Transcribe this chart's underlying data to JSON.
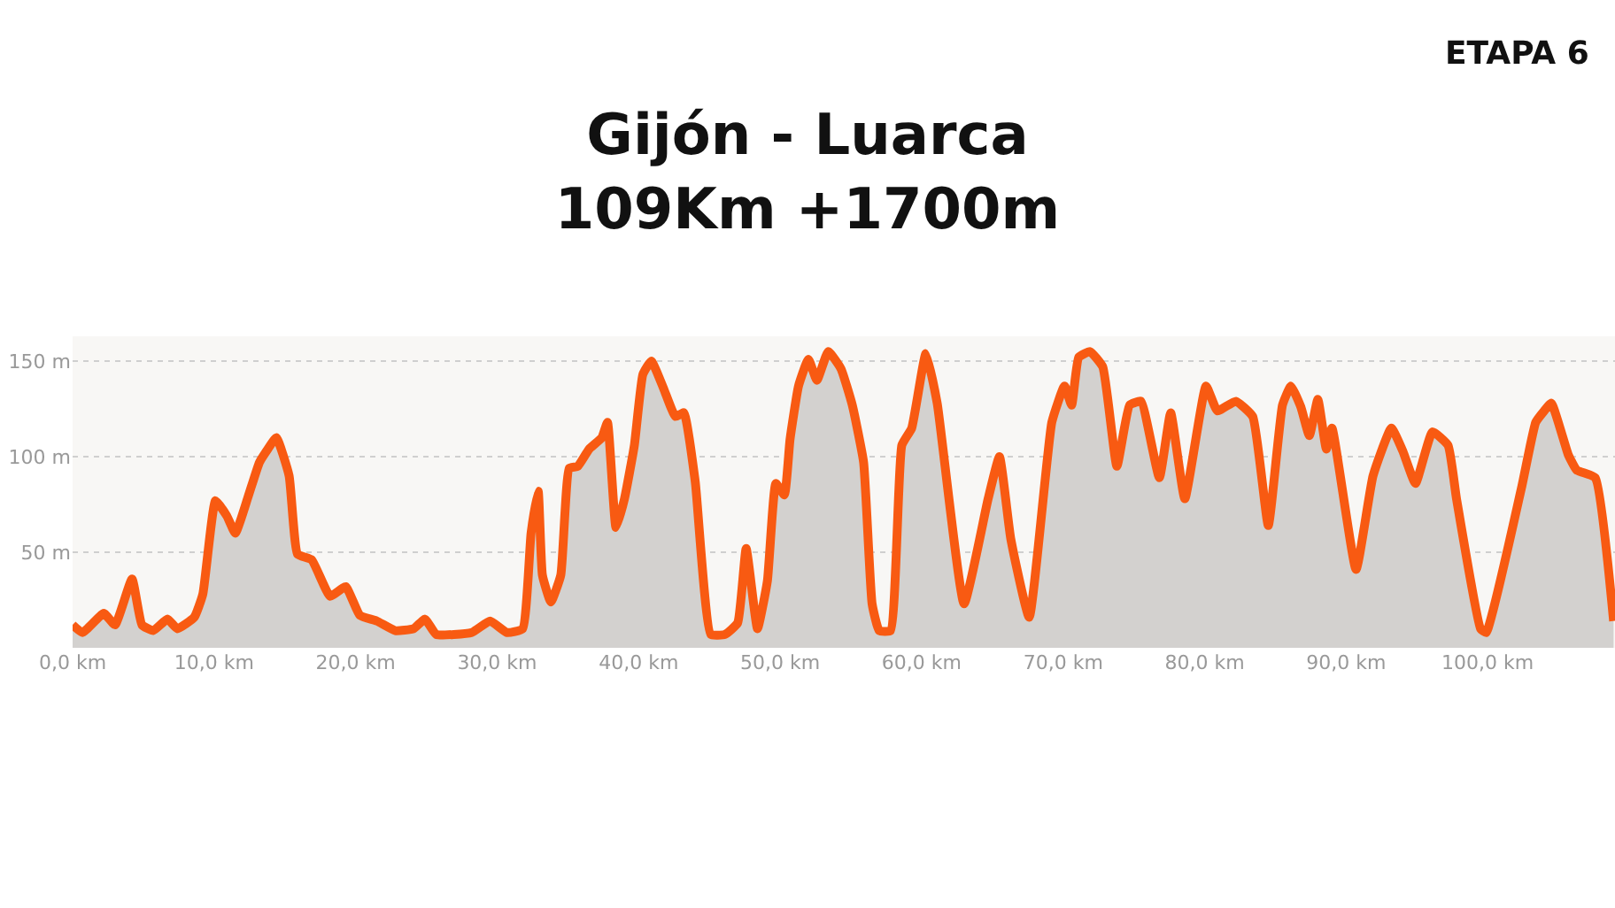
{
  "chart_data": {
    "type": "area",
    "title": "Gijón - Luarca",
    "subtitle": "109Km +1700m",
    "annotations": [
      "ETAPA 6"
    ],
    "x": [
      0,
      0.7,
      2.2,
      3.0,
      4.2,
      4.9,
      5.7,
      6.7,
      7.4,
      8.6,
      9.2,
      10.1,
      10.9,
      11.5,
      12.4,
      13.2,
      13.8,
      14.4,
      15.3,
      15.9,
      16.9,
      18.2,
      19.3,
      20.3,
      21.5,
      22.8,
      24.1,
      24.9,
      25.7,
      28.2,
      29.5,
      30.7,
      31.8,
      32.4,
      32.9,
      33.2,
      33.8,
      34.5,
      35.1,
      35.7,
      36.5,
      37.4,
      37.8,
      38.4,
      39.0,
      39.7,
      40.3,
      40.9,
      41.8,
      42.6,
      43.2,
      44.0,
      45.1,
      46.1,
      47.0,
      47.6,
      48.4,
      49.1,
      49.7,
      50.3,
      50.7,
      51.3,
      52.0,
      52.6,
      53.4,
      54.3,
      55.1,
      55.9,
      56.5,
      57.0,
      57.8,
      58.6,
      59.3,
      60.3,
      61.1,
      63.0,
      64.7,
      65.5,
      66.3,
      67.6,
      69.2,
      70.1,
      70.6,
      71.1,
      71.9,
      72.8,
      73.8,
      74.7,
      75.5,
      76.8,
      77.6,
      78.6,
      80.1,
      80.9,
      82.2,
      83.4,
      84.5,
      85.5,
      86.1,
      86.8,
      87.4,
      88.0,
      88.6,
      89.0,
      90.7,
      91.9,
      93.2,
      94.0,
      94.9,
      96.1,
      97.2,
      97.8,
      99.5,
      99.9,
      102.4,
      103.4,
      104.0,
      104.5,
      105.7,
      106.3,
      107.6,
      108.9
    ],
    "series": [
      {
        "color": "#f85a12",
        "values": [
          12,
          8,
          18,
          12,
          36,
          12,
          9,
          15,
          10,
          16,
          28,
          77,
          69,
          60,
          79,
          97,
          104,
          110,
          90,
          49,
          46,
          27,
          32,
          17,
          14,
          9,
          10,
          15,
          7,
          8,
          14,
          8,
          10,
          60,
          82,
          38,
          24,
          38,
          94,
          95,
          104,
          110,
          118,
          63,
          78,
          106,
          143,
          150,
          135,
          121,
          123,
          87,
          7,
          7,
          13,
          52,
          10,
          35,
          86,
          80,
          109,
          137,
          151,
          140,
          155,
          146,
          127,
          97,
          23,
          9,
          9,
          106,
          115,
          154,
          128,
          23,
          78,
          100,
          57,
          16,
          118,
          137,
          127,
          152,
          155,
          147,
          95,
          127,
          129,
          89,
          123,
          78,
          137,
          124,
          129,
          121,
          64,
          127,
          137,
          126,
          111,
          130,
          104,
          115,
          41,
          90,
          115,
          103,
          86,
          113,
          106,
          78,
          10,
          8,
          84,
          118,
          124,
          128,
          101,
          93,
          89,
          14
        ]
      }
    ],
    "xlim": [
      0,
      109
    ],
    "ylim": [
      0,
      163
    ],
    "xticks": [
      {
        "value": 0,
        "label": "0,0 km"
      },
      {
        "value": 10,
        "label": "10,0 km"
      },
      {
        "value": 20,
        "label": "20,0 km"
      },
      {
        "value": 30,
        "label": "30,0 km"
      },
      {
        "value": 40,
        "label": "40,0 km"
      },
      {
        "value": 50,
        "label": "50,0 km"
      },
      {
        "value": 60,
        "label": "60,0 km"
      },
      {
        "value": 70,
        "label": "70,0 km"
      },
      {
        "value": 80,
        "label": "80,0 km"
      },
      {
        "value": 90,
        "label": "90,0 km"
      },
      {
        "value": 100,
        "label": "100,0 km"
      }
    ],
    "yticks": [
      {
        "value": 50,
        "label": "50 m"
      },
      {
        "value": 100,
        "label": "100 m"
      },
      {
        "value": 150,
        "label": "150 m"
      }
    ],
    "grid": "y",
    "legend": false
  }
}
